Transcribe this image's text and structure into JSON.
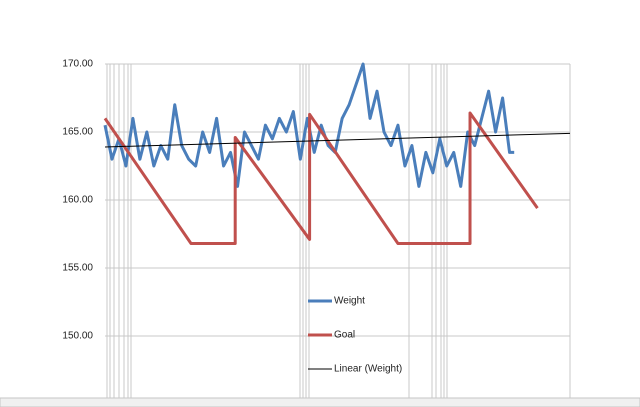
{
  "chart_data": {
    "type": "line",
    "xlim": [
      0,
      200
    ],
    "ylim": [
      145,
      170
    ],
    "yticks": [
      {
        "value": 150,
        "label": "150.00"
      },
      {
        "value": 155,
        "label": "155.00"
      },
      {
        "value": 160,
        "label": "160.00"
      },
      {
        "value": 165,
        "label": "165.00"
      },
      {
        "value": 170,
        "label": "170.00"
      }
    ],
    "grid": true,
    "series": [
      {
        "name": "Weight",
        "color": "#4a7ebb",
        "width": 3,
        "x": [
          0,
          3,
          6,
          9,
          12,
          15,
          18,
          21,
          24,
          27,
          30,
          33,
          36,
          39,
          42,
          45,
          48,
          51,
          54,
          57,
          60,
          63,
          66,
          69,
          72,
          75,
          78,
          81,
          84,
          87,
          90,
          93,
          96,
          99,
          102,
          105,
          108,
          111,
          114,
          117,
          120,
          123,
          126,
          129,
          132,
          135,
          138,
          141,
          144,
          147,
          150,
          153,
          156,
          159,
          162,
          165,
          168,
          171,
          174,
          176
        ],
        "values": [
          165.5,
          163,
          164.5,
          162.5,
          166,
          163,
          165,
          162.5,
          164,
          163,
          167,
          164,
          163,
          162.5,
          165,
          163.5,
          166,
          162.5,
          163.5,
          161,
          165,
          164,
          163,
          165.5,
          164.5,
          166,
          165,
          166.5,
          163,
          166,
          163.5,
          165.5,
          164,
          163.5,
          166,
          167,
          168.5,
          170,
          166,
          168,
          165,
          164,
          165.5,
          162.5,
          164,
          161,
          163.5,
          162,
          164.5,
          162.5,
          163.5,
          161,
          165,
          164,
          166,
          168,
          165,
          167.5,
          163.5,
          163.5
        ]
      },
      {
        "name": "Goal",
        "color": "#c0504d",
        "width": 3,
        "x": [
          0,
          37,
          56,
          56,
          88,
          88,
          126,
          157,
          157,
          186
        ],
        "values": [
          166,
          156.8,
          156.8,
          164.6,
          157.1,
          166.3,
          156.8,
          156.8,
          166.4,
          159.4
        ]
      },
      {
        "name": "Linear (Weight)",
        "color": "#000000",
        "width": 1,
        "x": [
          0,
          200
        ],
        "values": [
          163.9,
          164.9
        ]
      }
    ]
  }
}
